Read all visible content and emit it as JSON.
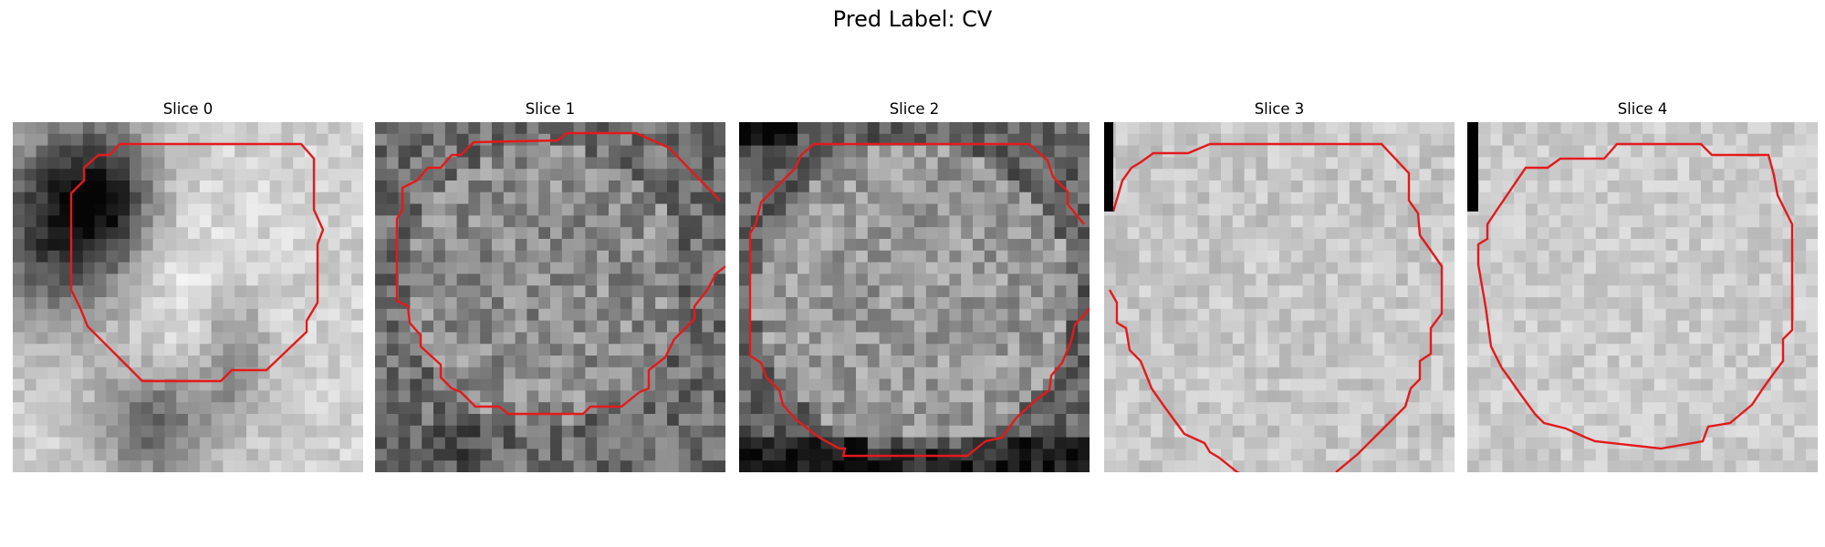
{
  "figure": {
    "title": "Pred Label: CV"
  },
  "panels": [
    {
      "title": "Slice 0"
    },
    {
      "title": "Slice 1"
    },
    {
      "title": "Slice 2"
    },
    {
      "title": "Slice 3"
    },
    {
      "title": "Slice 4"
    }
  ],
  "contour_color": "#e31a1c",
  "colormap": "gray"
}
